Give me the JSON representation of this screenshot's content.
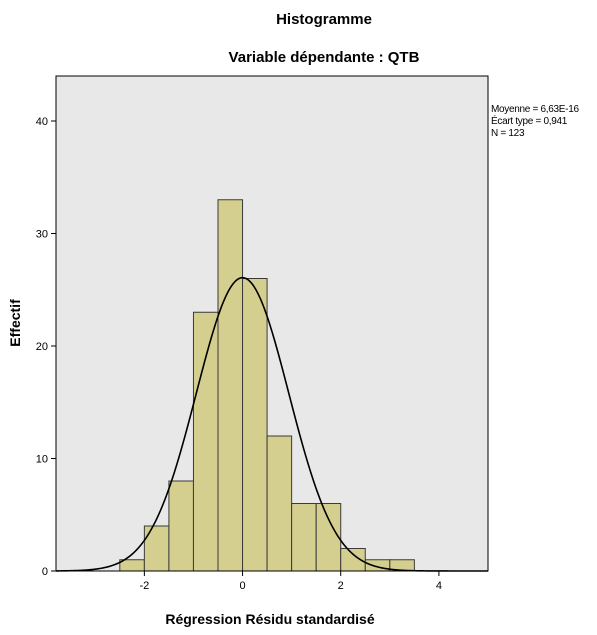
{
  "chart_data": {
    "type": "bar",
    "title": "Histogramme",
    "subtitle": "Variable dépendante : QTB",
    "xlabel": "Régression Résidu standardisé",
    "ylabel": "Effectif",
    "xlim": [
      -3.8,
      5.0
    ],
    "ylim": [
      0,
      44
    ],
    "x_ticks": [
      -2,
      0,
      2,
      4
    ],
    "x_tick_labels": [
      "-2",
      "0",
      "2",
      "4"
    ],
    "y_ticks": [
      0,
      10,
      20,
      30,
      40
    ],
    "y_tick_labels": [
      "0",
      "10",
      "20",
      "30",
      "40"
    ],
    "bin_width": 0.5,
    "bins": [
      {
        "start": -2.5,
        "end": -2.0,
        "count": 1
      },
      {
        "start": -2.0,
        "end": -1.5,
        "count": 4
      },
      {
        "start": -1.5,
        "end": -1.0,
        "count": 8
      },
      {
        "start": -1.0,
        "end": -0.5,
        "count": 23
      },
      {
        "start": -0.5,
        "end": 0.0,
        "count": 33
      },
      {
        "start": 0.0,
        "end": 0.5,
        "count": 26
      },
      {
        "start": 0.5,
        "end": 1.0,
        "count": 12
      },
      {
        "start": 1.0,
        "end": 1.5,
        "count": 6
      },
      {
        "start": 1.5,
        "end": 2.0,
        "count": 6
      },
      {
        "start": 2.0,
        "end": 2.5,
        "count": 2
      },
      {
        "start": 2.5,
        "end": 3.0,
        "count": 1
      },
      {
        "start": 3.0,
        "end": 3.5,
        "count": 1
      }
    ],
    "normal_curve": {
      "mean": 6.63e-16,
      "sd": 0.941,
      "n": 123
    },
    "stats_lines": [
      "Moyenne = 6,63E-16",
      "Écart type = 0,941",
      "N = 123"
    ],
    "grid": false,
    "colors": {
      "plot_background": "#e8e8e8",
      "bar_fill": "#d4cf8f",
      "bar_stroke": "#3a3a3a",
      "curve": "#000000"
    }
  }
}
